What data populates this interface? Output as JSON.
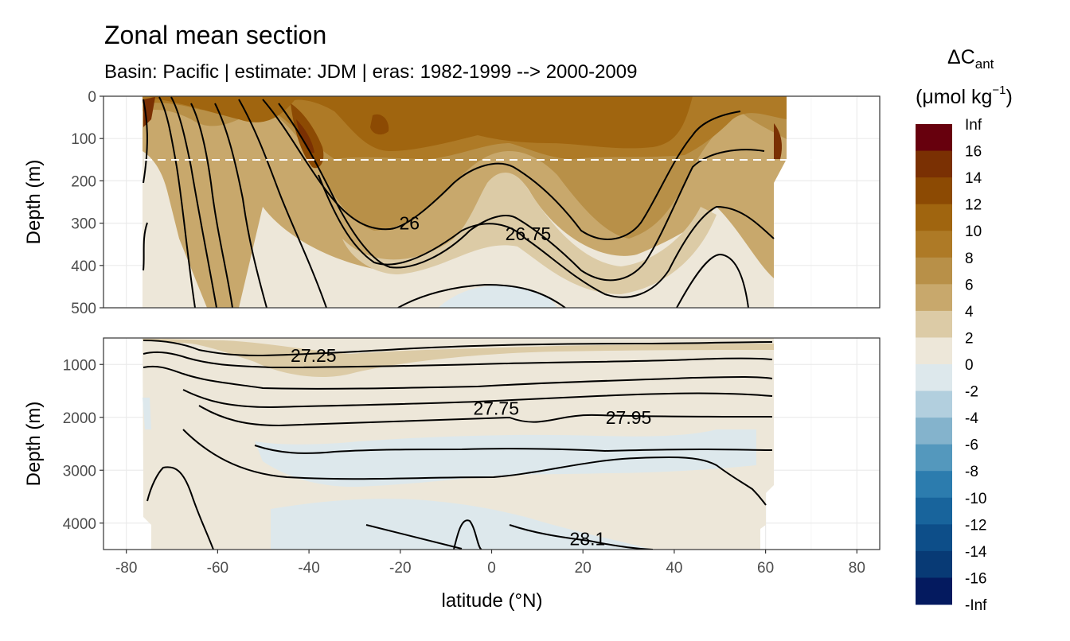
{
  "chart_data": {
    "type": "heatmap",
    "title": "Zonal mean section",
    "subtitle": "Basin: Pacific | estimate: JDM  | eras: 1982-1999 --> 2000-2009",
    "xlabel": "latitude (°N)",
    "ylabel": "Depth (m)",
    "xlim": [
      -85,
      85
    ],
    "x_ticks": [
      -80,
      -60,
      -40,
      -20,
      0,
      20,
      40,
      60,
      80
    ],
    "x_tick_labels": [
      "-80",
      "-60",
      "-40",
      "-20",
      "0",
      "20",
      "40",
      "60",
      "80"
    ],
    "data_lat_range": [
      -76,
      64
    ],
    "panels": [
      {
        "name": "upper",
        "ylim": [
          0,
          500
        ],
        "y_ticks": [
          0,
          100,
          200,
          300,
          400,
          500
        ],
        "y_tick_labels": [
          "0",
          "100",
          "200",
          "300",
          "400",
          "500"
        ],
        "reference_line_depth": 150
      },
      {
        "name": "lower",
        "ylim": [
          500,
          4500
        ],
        "y_ticks": [
          1000,
          2000,
          3000,
          4000
        ],
        "y_tick_labels": [
          "1000",
          "2000",
          "3000",
          "4000"
        ]
      }
    ],
    "legend": {
      "title_main": "ΔC",
      "title_sub": "ant",
      "unit": "(μmol kg",
      "unit_sup": "−1",
      "unit_close": ")",
      "labels": [
        "Inf",
        "16",
        "14",
        "12",
        "10",
        "8",
        "6",
        "4",
        "2",
        "0",
        "-2",
        "-4",
        "-6",
        "-8",
        "-10",
        "-12",
        "-14",
        "-16",
        "-Inf"
      ],
      "colors": [
        "#67000d",
        "#7a3003",
        "#8c4a03",
        "#a0650f",
        "#ae7a26",
        "#b89048",
        "#c8a86c",
        "#dccba6",
        "#ede7d9",
        "#dde8ec",
        "#b2cfde",
        "#84b3cc",
        "#5498bd",
        "#2c7cae",
        "#18649c",
        "#0d4e89",
        "#083a75",
        "#041a5f"
      ]
    },
    "contour_labels": [
      {
        "text": "26",
        "lat": -18,
        "depth": 300,
        "panel": 0
      },
      {
        "text": "26.75",
        "lat": 8,
        "depth": 325,
        "panel": 0
      },
      {
        "text": "27.25",
        "lat": -39,
        "depth": 830,
        "panel": 1
      },
      {
        "text": "27.75",
        "lat": 1,
        "depth": 1830,
        "panel": 1
      },
      {
        "text": "27.95",
        "lat": 30,
        "depth": 2000,
        "panel": 1
      },
      {
        "text": "28.1",
        "lat": 21,
        "depth": 4300,
        "panel": 1
      }
    ],
    "cant_regions": [
      {
        "panel": 0,
        "level": "8-10",
        "lat": [
          -76,
          64
        ],
        "depth": [
          0,
          135
        ]
      },
      {
        "panel": 0,
        "level": "10-12",
        "lat": [
          -62,
          40
        ],
        "depth": [
          0,
          90
        ]
      },
      {
        "panel": 0,
        "level": "12-14",
        "lat": [
          -42,
          -36
        ],
        "depth": [
          30,
          160
        ]
      },
      {
        "panel": 0,
        "level": "6-8",
        "lat": [
          -76,
          64
        ],
        "depth": [
          100,
          300
        ]
      },
      {
        "panel": 0,
        "level": "4-6",
        "lat": [
          -76,
          64
        ],
        "depth": [
          180,
          420
        ]
      },
      {
        "panel": 0,
        "level": "2-4",
        "lat": [
          -76,
          62
        ],
        "depth": [
          250,
          500
        ]
      },
      {
        "panel": 0,
        "level": "0-2",
        "lat": [
          -10,
          14
        ],
        "depth": [
          420,
          500
        ]
      },
      {
        "panel": 1,
        "level": "2-4",
        "lat": [
          -76,
          62
        ],
        "depth": [
          500,
          1100
        ]
      },
      {
        "panel": 1,
        "level": "0-2",
        "lat": [
          -76,
          62
        ],
        "depth": [
          1000,
          3500
        ]
      },
      {
        "panel": 1,
        "level": "-2-0",
        "lat": [
          -45,
          60
        ],
        "depth": [
          1800,
          3300
        ]
      },
      {
        "panel": 1,
        "level": "-2-0",
        "lat": [
          -50,
          40
        ],
        "depth": [
          3400,
          4500
        ]
      }
    ]
  }
}
